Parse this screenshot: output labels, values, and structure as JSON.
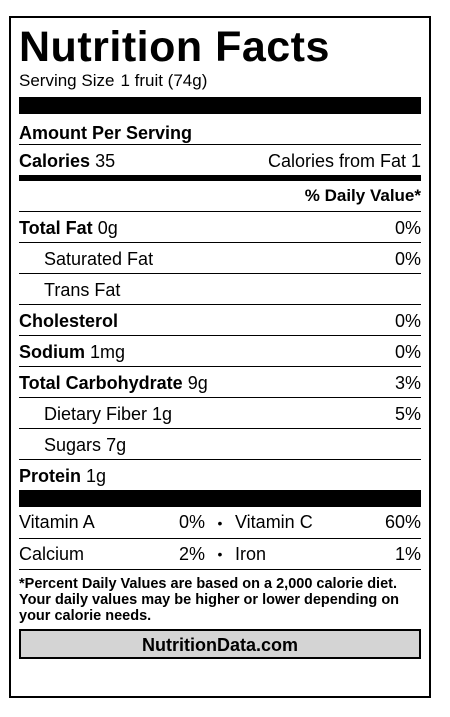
{
  "title": "Nutrition Facts",
  "serving": {
    "label": "Serving Size",
    "value": "1 fruit (74g)"
  },
  "amount_per_serving": "Amount Per Serving",
  "calories": {
    "label": "Calories",
    "value": "35",
    "from_fat": "Calories from Fat 1"
  },
  "daily_value_header": "% Daily Value*",
  "nutrients": [
    {
      "label": "Total Fat",
      "amount": "0g",
      "dv": "0%"
    },
    {
      "label": "Saturated Fat",
      "amount": "",
      "dv": "0%"
    },
    {
      "label": "Trans Fat",
      "amount": "",
      "dv": ""
    },
    {
      "label": "Cholesterol",
      "amount": "",
      "dv": "0%"
    },
    {
      "label": "Sodium",
      "amount": "1mg",
      "dv": "0%"
    },
    {
      "label": "Total Carbohydrate",
      "amount": "9g",
      "dv": "3%"
    },
    {
      "label": "Dietary Fiber",
      "amount": "1g",
      "dv": "5%"
    },
    {
      "label": "Sugars",
      "amount": "7g",
      "dv": ""
    },
    {
      "label": "Protein",
      "amount": "1g",
      "dv": ""
    }
  ],
  "vitamins": [
    {
      "name1": "Vitamin A",
      "dv1": "0%",
      "sep": "•",
      "name2": "Vitamin C",
      "dv2": "60%"
    },
    {
      "name1": "Calcium",
      "dv1": "2%",
      "sep": "•",
      "name2": "Iron",
      "dv2": "1%"
    }
  ],
  "footnote": "*Percent Daily Values are based on a 2,000 calorie diet. Your daily values may be higher or lower depending on your calorie needs.",
  "source": "NutritionData.com"
}
